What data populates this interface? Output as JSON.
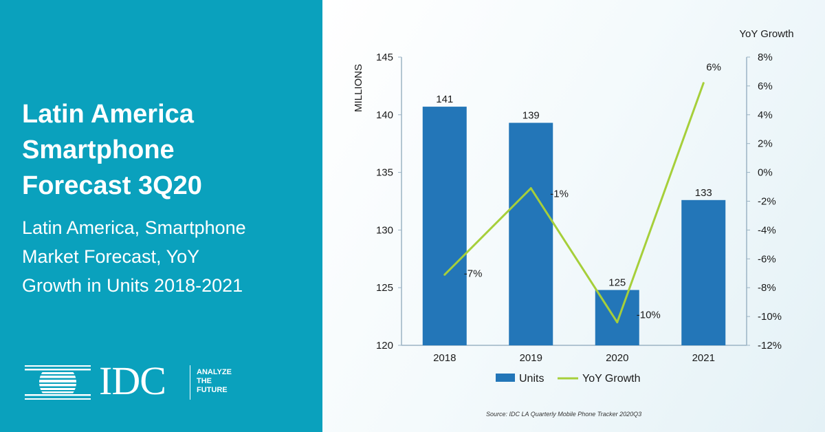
{
  "panel": {
    "title_lines": [
      "Latin America",
      "Smartphone",
      "Forecast 3Q20"
    ],
    "subtitle_lines": [
      "Latin America, Smartphone",
      "Market Forecast, YoY",
      "Growth in Units 2018-2021"
    ],
    "background_color": "#0aa1bd",
    "logo": {
      "text": "IDC",
      "tagline": [
        "ANALYZE",
        "THE",
        "FUTURE"
      ],
      "icon": "globe-striped-icon"
    }
  },
  "source": "Source: IDC LA Quarterly Mobile Phone Tracker 2020Q3",
  "chart_data": {
    "type": "bar",
    "categories": [
      "2018",
      "2019",
      "2020",
      "2021"
    ],
    "series": [
      {
        "name": "Units",
        "type": "bar",
        "axis": "left",
        "color": "#2376b8",
        "values": [
          140.7,
          139.3,
          124.8,
          132.6
        ],
        "labels": [
          "141",
          "139",
          "125",
          "133"
        ]
      },
      {
        "name": "YoY Growth",
        "type": "line",
        "axis": "right",
        "color": "#a6cf3a",
        "values": [
          -7.1,
          -1.1,
          -10.4,
          6.2
        ],
        "labels": [
          "-7%",
          "-1%",
          "-10%",
          "6%"
        ]
      }
    ],
    "ylabel": "MILLIONS",
    "ylim": [
      120,
      145
    ],
    "yticks": [
      "120",
      "125",
      "130",
      "135",
      "140",
      "145"
    ],
    "y2label": "YoY Growth",
    "y2lim": [
      -12,
      8
    ],
    "y2ticks": [
      "-12%",
      "-10%",
      "-8%",
      "-6%",
      "-4%",
      "-2%",
      "0%",
      "2%",
      "4%",
      "6%",
      "8%"
    ],
    "legend": [
      "Units",
      "YoY Growth"
    ],
    "legend_position": "bottom",
    "grid": false
  }
}
